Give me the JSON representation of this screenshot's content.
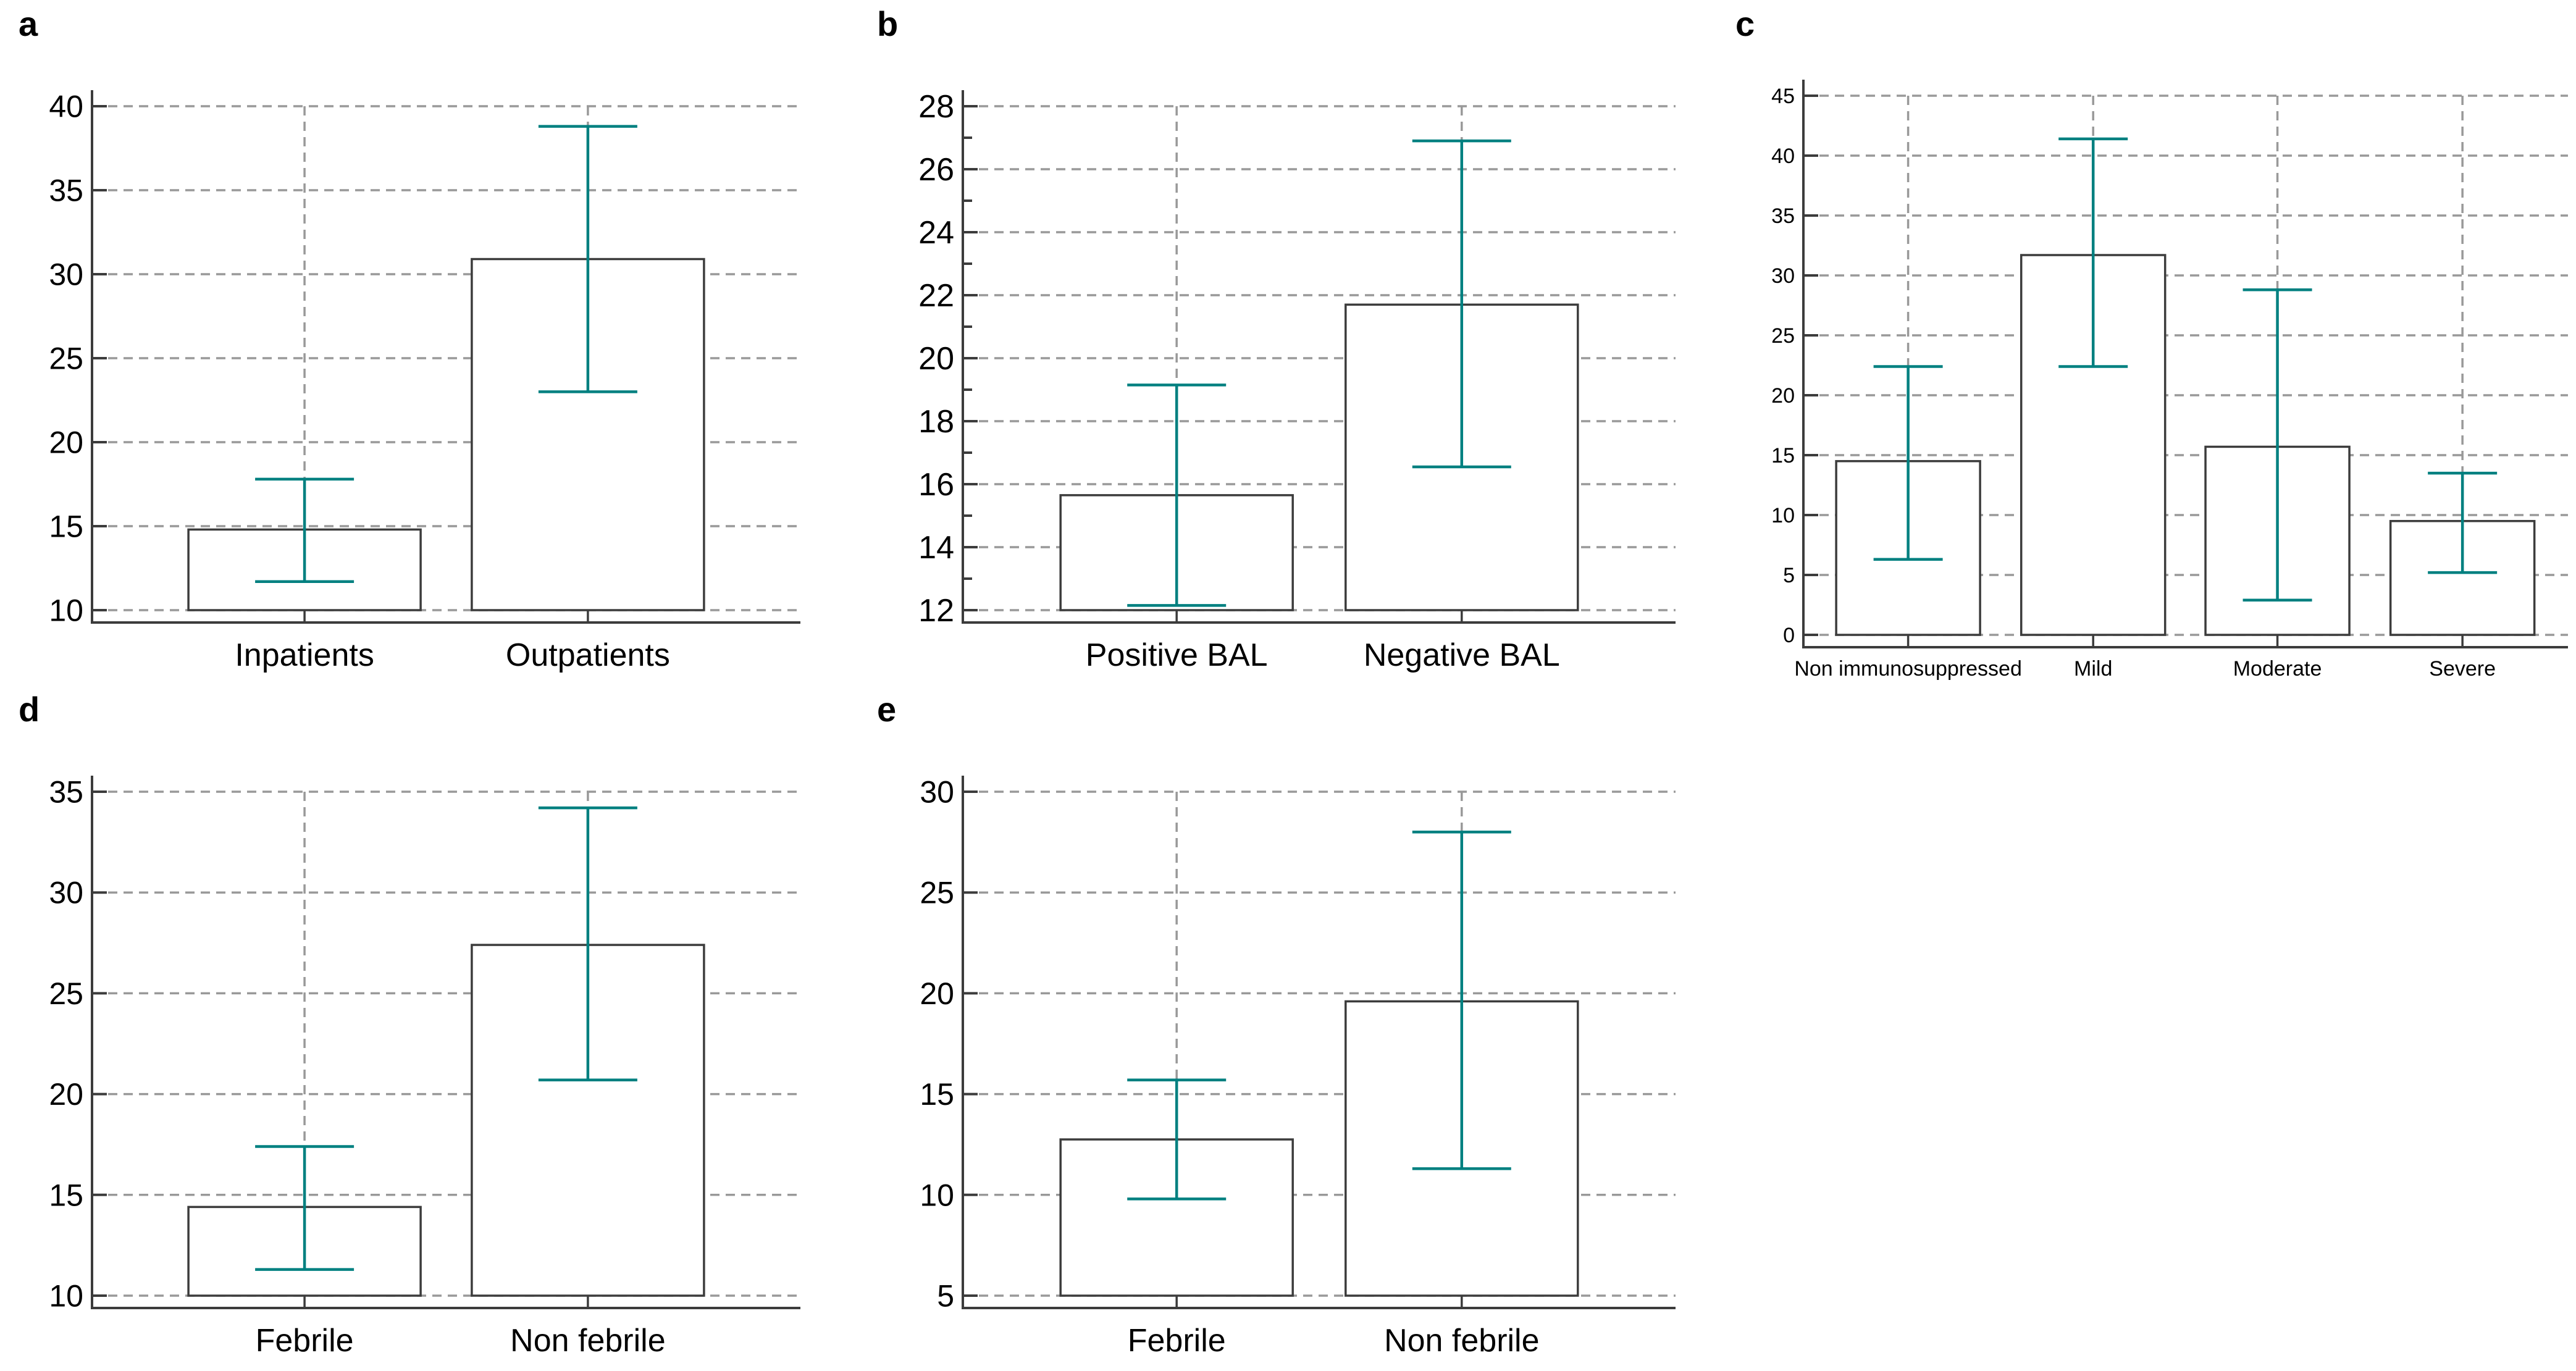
{
  "figure": {
    "background": "#ffffff",
    "description": "Five-panel bar chart figure (a-e) with teal error bars and dashed gridlines"
  },
  "colors": {
    "error_bar": "#008080",
    "axis": "#3c3c3c",
    "bar_border": "#3c3c3c",
    "bar_fill": "#ffffff",
    "gridline": "#999999",
    "text": "#000000"
  },
  "chart_data": [
    {
      "panel_label": "a",
      "type": "bar",
      "title": "",
      "xlabel": "",
      "ylabel": "",
      "categories": [
        "Inpatients",
        "Outpatients"
      ],
      "values": [
        14.8,
        30.9
      ],
      "error_low": [
        11.7,
        23.0
      ],
      "error_high": [
        17.8,
        38.8
      ],
      "ylim": [
        10,
        40
      ],
      "yticks": [
        10,
        15,
        20,
        25,
        30,
        35,
        40
      ],
      "grid": "dashed",
      "legend": "none"
    },
    {
      "panel_label": "b",
      "type": "bar",
      "title": "",
      "xlabel": "",
      "ylabel": "",
      "categories": [
        "Positive BAL",
        "Negative BAL"
      ],
      "values": [
        15.65,
        21.7
      ],
      "error_low": [
        12.15,
        16.55
      ],
      "error_high": [
        19.15,
        26.9
      ],
      "ylim": [
        12,
        28
      ],
      "yticks": [
        12,
        14,
        16,
        18,
        20,
        22,
        24,
        26,
        28
      ],
      "minor_ytick_step": 1,
      "grid": "dashed",
      "legend": "none"
    },
    {
      "panel_label": "c",
      "type": "bar",
      "title": "",
      "xlabel": "",
      "ylabel": "",
      "categories": [
        "Non immunosuppressed",
        "Mild",
        "Moderate",
        "Severe"
      ],
      "values": [
        14.5,
        31.7,
        15.7,
        9.5
      ],
      "error_low": [
        6.3,
        22.4,
        2.9,
        5.2
      ],
      "error_high": [
        22.4,
        41.4,
        28.8,
        13.5
      ],
      "ylim": [
        0,
        45
      ],
      "yticks": [
        0,
        5,
        10,
        15,
        20,
        25,
        30,
        35,
        40,
        45
      ],
      "grid": "dashed",
      "legend": "none"
    },
    {
      "panel_label": "d",
      "type": "bar",
      "title": "",
      "xlabel": "",
      "ylabel": "",
      "categories": [
        "Febrile",
        "Non febrile"
      ],
      "values": [
        14.4,
        27.4
      ],
      "error_low": [
        11.3,
        20.7
      ],
      "error_high": [
        17.4,
        34.2
      ],
      "ylim": [
        10,
        35
      ],
      "yticks": [
        10,
        15,
        20,
        25,
        30,
        35
      ],
      "grid": "dashed",
      "legend": "none"
    },
    {
      "panel_label": "e",
      "type": "bar",
      "title": "",
      "xlabel": "",
      "ylabel": "",
      "categories": [
        "Febrile",
        "Non febrile"
      ],
      "values": [
        12.75,
        19.6
      ],
      "error_low": [
        9.8,
        11.3
      ],
      "error_high": [
        15.7,
        28.0
      ],
      "ylim": [
        5,
        30
      ],
      "yticks": [
        5,
        10,
        15,
        20,
        25,
        30
      ],
      "grid": "dashed",
      "legend": "none"
    }
  ]
}
